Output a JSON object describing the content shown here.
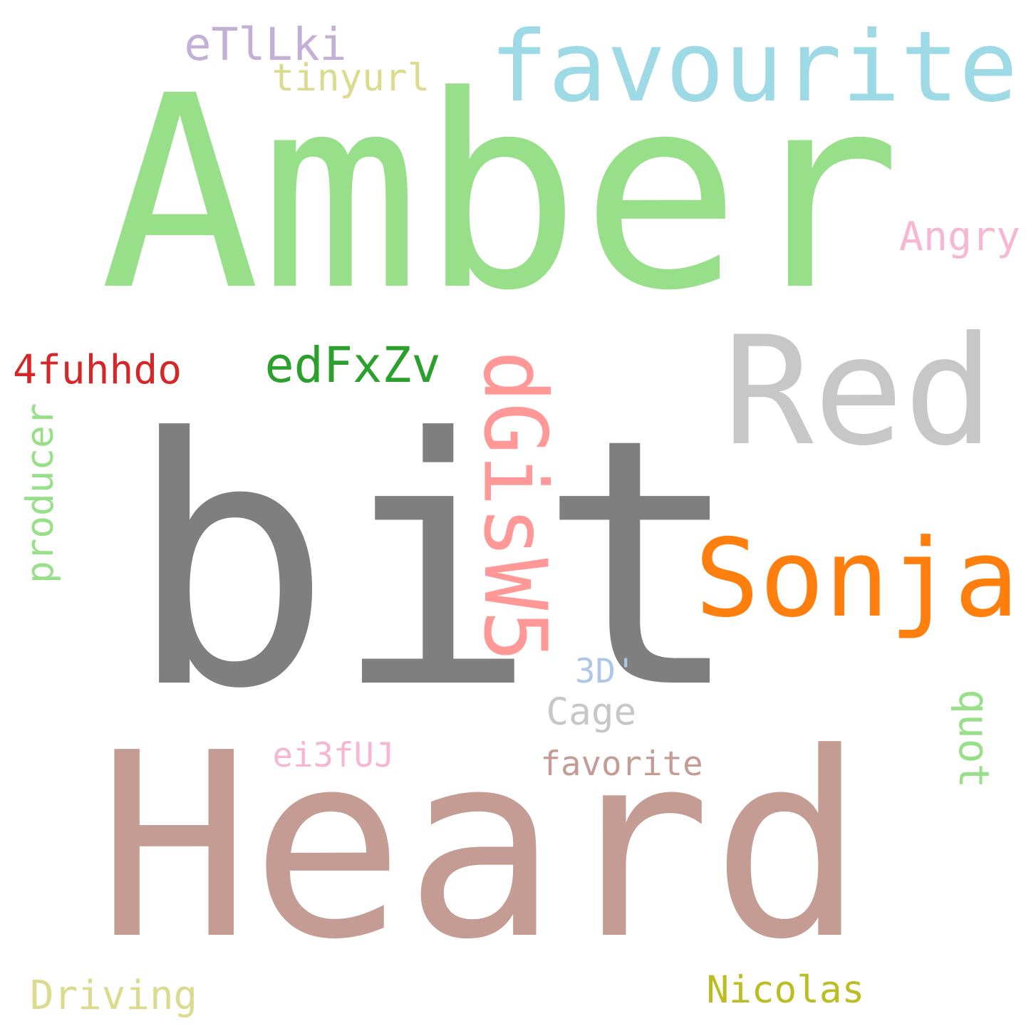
{
  "words": [
    {
      "text": "Amber",
      "color": "#98df8a"
    },
    {
      "text": "bit",
      "color": "#7f7f7f"
    },
    {
      "text": "Heard",
      "color": "#c49c94"
    },
    {
      "text": "Red",
      "color": "#c7c7c7"
    },
    {
      "text": "favourite",
      "color": "#9edae5"
    },
    {
      "text": "dGisW5",
      "color": "#ff9896"
    },
    {
      "text": "Sonja",
      "color": "#ff7f0e"
    },
    {
      "text": "edFxZv",
      "color": "#2ca02c"
    },
    {
      "text": "eTlLki",
      "color": "#c5b0d5"
    },
    {
      "text": "tinyurl",
      "color": "#dbdb8d"
    },
    {
      "text": "4fuhhdo",
      "color": "#d62728"
    },
    {
      "text": "producer",
      "color": "#98df8a"
    },
    {
      "text": "Angry",
      "color": "#f7b6d2"
    },
    {
      "text": "quot",
      "color": "#98df8a"
    },
    {
      "text": "3D'",
      "color": "#aec7e8"
    },
    {
      "text": "Cage",
      "color": "#c7c7c7"
    },
    {
      "text": "ei3fUJ",
      "color": "#f7b6d2"
    },
    {
      "text": "favorite",
      "color": "#c49c94"
    },
    {
      "text": "Nicolas",
      "color": "#bcbd22"
    },
    {
      "text": "Driving",
      "color": "#dbdb8d"
    }
  ]
}
